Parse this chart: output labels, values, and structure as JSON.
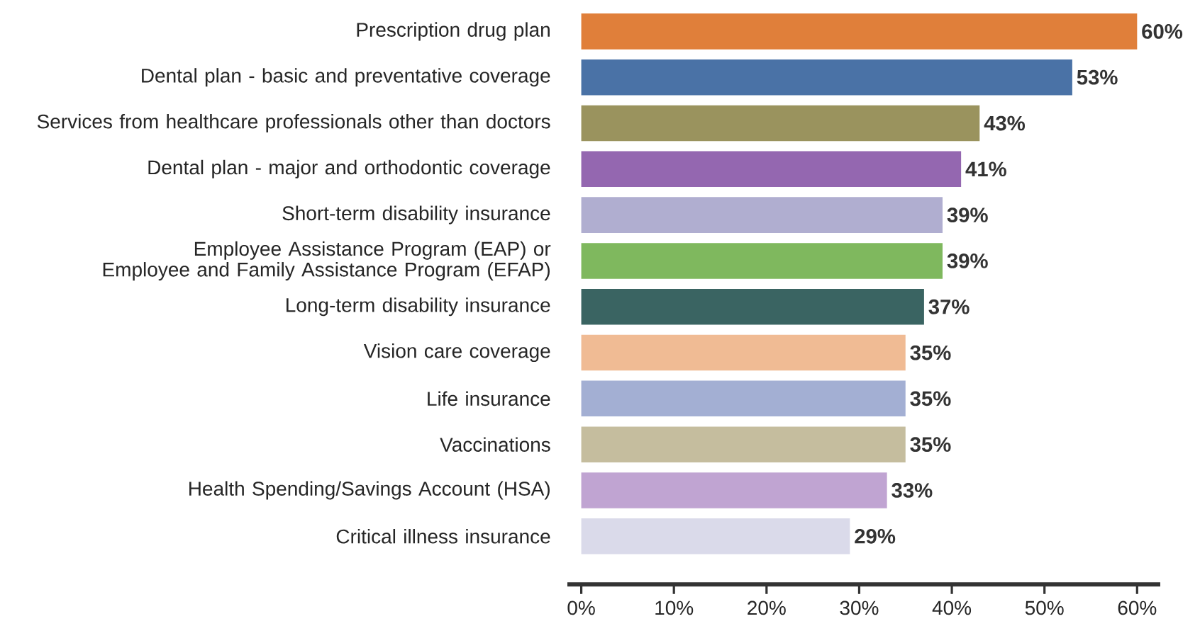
{
  "chart_data": {
    "type": "bar",
    "orientation": "horizontal",
    "categories": [
      "Prescription drug plan",
      "Dental plan - basic and preventative coverage",
      "Services from healthcare professionals other than doctors",
      "Dental plan - major and orthodontic coverage",
      "Short-term disability insurance",
      "Employee Assistance Program (EAP) or Employee and Family Assistance Program (EFAP)",
      "Long-term disability insurance",
      "Vision care coverage",
      "Life insurance",
      "Vaccinations",
      "Health Spending/Savings Account (HSA)",
      "Critical illness insurance"
    ],
    "values": [
      60,
      53,
      43,
      41,
      39,
      39,
      37,
      35,
      35,
      35,
      33,
      29
    ],
    "colors": [
      "#e07f3a",
      "#4a72a6",
      "#9a935e",
      "#9467b0",
      "#b0aed0",
      "#7fb85e",
      "#3a6462",
      "#f0bb94",
      "#a3afd3",
      "#c5bd9e",
      "#c0a4d2",
      "#dadaea"
    ],
    "value_labels": [
      "60%",
      "53%",
      "43%",
      "41%",
      "39%",
      "39%",
      "37%",
      "35%",
      "35%",
      "35%",
      "33%",
      "29%"
    ],
    "xlim": [
      -1.5,
      62.5
    ],
    "xticks": [
      {
        "value": 0,
        "label": "0%"
      },
      {
        "value": 10,
        "label": "10%"
      },
      {
        "value": 20,
        "label": "20%"
      },
      {
        "value": 30,
        "label": "30%"
      },
      {
        "value": 40,
        "label": "40%"
      },
      {
        "value": 50,
        "label": "50%"
      },
      {
        "value": 60,
        "label": "60%"
      }
    ]
  }
}
